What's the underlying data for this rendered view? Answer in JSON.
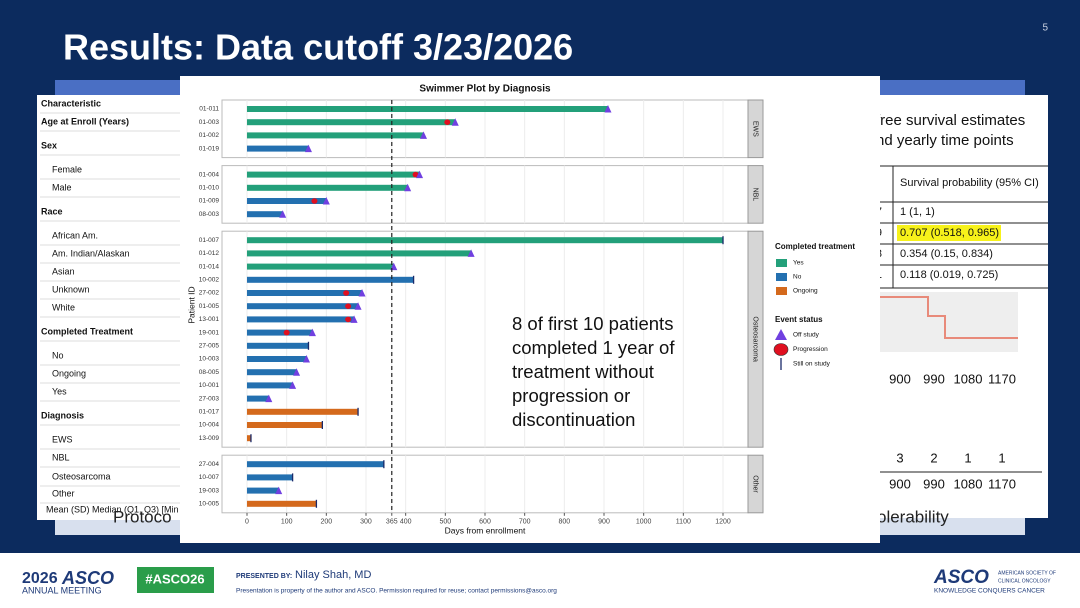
{
  "slide": {
    "title": "Results: Data cutoff 3/23/2026",
    "page_number": "5"
  },
  "background_table": {
    "rows": [
      {
        "text": "Characteristic",
        "bold": true
      },
      {
        "text": "Age at Enroll (Years)",
        "bold": true
      },
      {
        "text": "Sex",
        "bold": true
      },
      {
        "text": "Female",
        "bold": false
      },
      {
        "text": "Male",
        "bold": false
      },
      {
        "text": "Race",
        "bold": true
      },
      {
        "text": "African Am.",
        "bold": false
      },
      {
        "text": "Am. Indian/Alaskan",
        "bold": false
      },
      {
        "text": "Asian",
        "bold": false
      },
      {
        "text": "Unknown",
        "bold": false
      },
      {
        "text": "White",
        "bold": false
      },
      {
        "text": "Completed Treatment",
        "bold": true
      },
      {
        "text": "No",
        "bold": false
      },
      {
        "text": "Ongoing",
        "bold": false
      },
      {
        "text": "Yes",
        "bold": false
      },
      {
        "text": "Diagnosis",
        "bold": true
      },
      {
        "text": "EWS",
        "bold": false
      },
      {
        "text": "NBL",
        "bold": false
      },
      {
        "text": "Osteosarcoma",
        "bold": false
      },
      {
        "text": "Other",
        "bold": false
      }
    ],
    "footnote": "Mean (SD) Median (Q1, Q3) [Min"
  },
  "right_panel": {
    "heading": [
      "free survival estimates",
      "nd yearly time points"
    ],
    "table_header": "Survival probability (95% CI)",
    "table_rows": [
      [
        "7",
        "1 (1, 1)"
      ],
      [
        "9",
        "0.707 (0.518, 0.965)"
      ],
      [
        "3",
        "0.354 (0.15, 0.834)"
      ],
      [
        "1",
        "0.118 (0.019, 0.725)"
      ]
    ],
    "axis_labels": [
      "900",
      "990",
      "1080",
      "1170"
    ],
    "risk_counts": [
      "3",
      "2",
      "1",
      "1"
    ],
    "axis_labels_2": [
      "900",
      "990",
      "1080",
      "1170"
    ]
  },
  "bottom_text": [
    "Protoco",
    "olerability"
  ],
  "chart_data": {
    "type": "swimmer",
    "title": "Swimmer Plot by Diagnosis",
    "x_label": "Days from enrollment",
    "y_label": "Patient ID",
    "xlim": [
      -63,
      1263
    ],
    "xticks": [
      0,
      100,
      200,
      300,
      365,
      400,
      500,
      600,
      700,
      800,
      900,
      1000,
      1100,
      1200
    ],
    "reference_line": 365,
    "grid": true,
    "treatment_legend": {
      "title": "Completed treatment",
      "items": [
        {
          "label": "Yes",
          "color": "#23a07a"
        },
        {
          "label": "No",
          "color": "#2370b0"
        },
        {
          "label": "Ongoing",
          "color": "#d4691c"
        }
      ]
    },
    "event_legend": {
      "title": "Event status",
      "items": [
        {
          "label": "Off study",
          "color": "#7040e0"
        },
        {
          "label": "Progression",
          "color": "#e01020"
        },
        {
          "label": "Still on study",
          "color": "#1a2a6a"
        }
      ]
    },
    "panels": [
      {
        "name": "EWS",
        "rows": [
          {
            "id": "01-011",
            "days": 910,
            "treatment": 0,
            "progression": null,
            "end": 0
          },
          {
            "id": "01-003",
            "days": 525,
            "treatment": 0,
            "progression": 505,
            "end": 0
          },
          {
            "id": "01-002",
            "days": 445,
            "treatment": 0,
            "progression": null,
            "end": 0
          },
          {
            "id": "01-019",
            "days": 155,
            "treatment": 1,
            "progression": null,
            "end": 0
          }
        ]
      },
      {
        "name": "NBL",
        "rows": [
          {
            "id": "01-004",
            "days": 435,
            "treatment": 0,
            "progression": 425,
            "end": 0
          },
          {
            "id": "01-010",
            "days": 405,
            "treatment": 0,
            "progression": null,
            "end": 0
          },
          {
            "id": "01-009",
            "days": 200,
            "treatment": 1,
            "progression": 170,
            "end": 0
          },
          {
            "id": "08-003",
            "days": 90,
            "treatment": 1,
            "progression": null,
            "end": 0
          }
        ]
      },
      {
        "name": "Osteosarcoma",
        "rows": [
          {
            "id": "01-007",
            "days": 1200,
            "treatment": 0,
            "progression": null,
            "end": 2
          },
          {
            "id": "01-012",
            "days": 565,
            "treatment": 0,
            "progression": null,
            "end": 0
          },
          {
            "id": "01-014",
            "days": 370,
            "treatment": 0,
            "progression": null,
            "end": 0
          },
          {
            "id": "10-002",
            "days": 420,
            "treatment": 1,
            "progression": null,
            "end": 2
          },
          {
            "id": "27-002",
            "days": 290,
            "treatment": 1,
            "progression": 250,
            "end": 0
          },
          {
            "id": "01-005",
            "days": 280,
            "treatment": 1,
            "progression": 255,
            "end": 0
          },
          {
            "id": "13-001",
            "days": 270,
            "treatment": 1,
            "progression": 255,
            "end": 0
          },
          {
            "id": "19-001",
            "days": 165,
            "treatment": 1,
            "progression": 100,
            "end": 0
          },
          {
            "id": "27-005",
            "days": 155,
            "treatment": 1,
            "progression": null,
            "end": 2
          },
          {
            "id": "10-003",
            "days": 150,
            "treatment": 1,
            "progression": null,
            "end": 0
          },
          {
            "id": "08-005",
            "days": 125,
            "treatment": 1,
            "progression": null,
            "end": 0
          },
          {
            "id": "10-001",
            "days": 115,
            "treatment": 1,
            "progression": null,
            "end": 0
          },
          {
            "id": "27-003",
            "days": 55,
            "treatment": 1,
            "progression": null,
            "end": 0
          },
          {
            "id": "01-017",
            "days": 280,
            "treatment": 2,
            "progression": null,
            "end": 2
          },
          {
            "id": "10-004",
            "days": 190,
            "treatment": 2,
            "progression": null,
            "end": 2
          },
          {
            "id": "13-009",
            "days": 10,
            "treatment": 2,
            "progression": null,
            "end": 2
          }
        ]
      },
      {
        "name": "Other",
        "rows": [
          {
            "id": "27-004",
            "days": 345,
            "treatment": 1,
            "progression": null,
            "end": 2
          },
          {
            "id": "10-007",
            "days": 115,
            "treatment": 1,
            "progression": null,
            "end": 2
          },
          {
            "id": "19-003",
            "days": 80,
            "treatment": 1,
            "progression": null,
            "end": 0
          },
          {
            "id": "10-005",
            "days": 175,
            "treatment": 2,
            "progression": null,
            "end": 2
          }
        ]
      }
    ],
    "annotation": [
      "8 of first 10 patients",
      "completed 1 year of",
      "treatment without",
      "progression or",
      "discontinuation"
    ]
  },
  "footer": {
    "meeting_year": "2026",
    "meeting_name": "ASCO",
    "meeting_sub": "ANNUAL MEETING",
    "hashtag": "#ASCO26",
    "presented_by": "PRESENTED BY:",
    "presenter": "Nilay Shah, MD",
    "notice": "Presentation is property of the author and ASCO. Permission required for reuse; contact permissions@asco.org",
    "org": "ASCO",
    "org_full": [
      "AMERICAN SOCIETY OF",
      "CLINICAL ONCOLOGY"
    ],
    "tagline": "KNOWLEDGE CONQUERS CANCER"
  }
}
